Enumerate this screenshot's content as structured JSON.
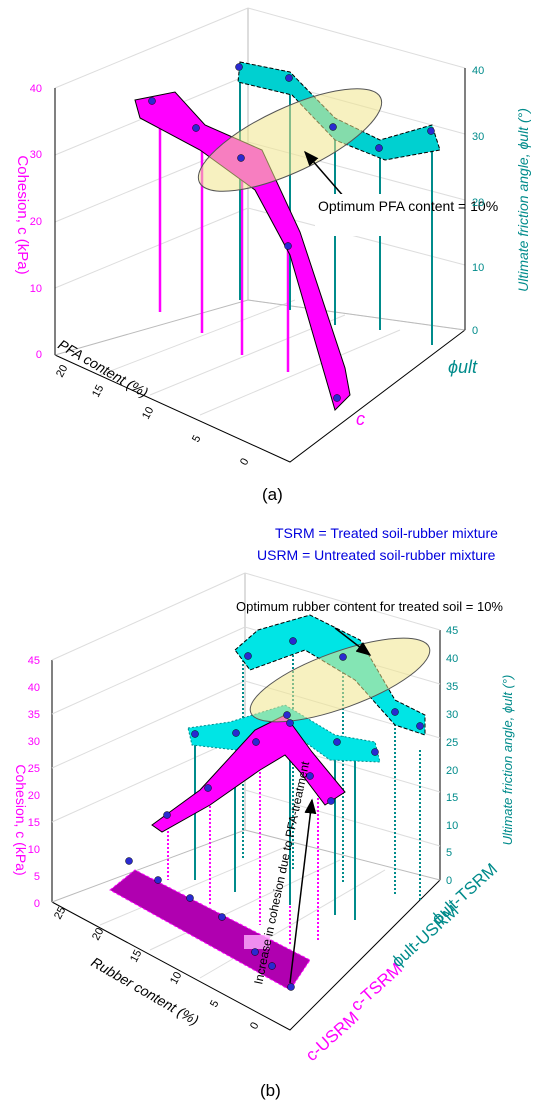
{
  "colors": {
    "cohesion": "#ff00ff",
    "cohesion_untreated": "#b000b0",
    "friction": "#008b8b",
    "friction_surface": "#00e5e5",
    "ellipse_fill": "#f0e68c",
    "label_blue": "#0000dd"
  },
  "chart_data": [
    {
      "type": "3d-surface",
      "panel_label": "(a)",
      "xlabel": "PFA content (%)",
      "x_ticks": [
        "0",
        "5",
        "10",
        "15",
        "20"
      ],
      "zlabel_left": "Cohesion, c (kPa)",
      "zlim_left": [
        0,
        40
      ],
      "z_ticks_left": [
        "0",
        "10",
        "20",
        "30",
        "40"
      ],
      "zlabel_right": "Ultimate friction angle, ϕult (°)",
      "zlim_right": [
        0,
        40
      ],
      "z_ticks_right": [
        "0",
        "10",
        "20",
        "30",
        "40"
      ],
      "series_labels": [
        "c",
        "ϕult"
      ],
      "series": [
        {
          "name": "c",
          "x": [
            0,
            10,
            20,
            25
          ],
          "values": [
            3,
            21,
            31,
            36
          ]
        },
        {
          "name": "ϕult",
          "x": [
            0,
            5,
            10,
            15,
            20
          ],
          "values": [
            30,
            29,
            33,
            33,
            37
          ]
        }
      ],
      "annotation": "Optimum PFA content = 10%"
    },
    {
      "type": "3d-surface",
      "panel_label": "(b)",
      "legend_notes": [
        "TSRM = Treated soil-rubber mixture",
        "USRM = Untreated soil-rubber mixture"
      ],
      "xlabel": "Rubber content (%)",
      "x_ticks": [
        "0",
        "5",
        "10",
        "15",
        "20",
        "25"
      ],
      "zlabel_left": "Cohesion, c (kPa)",
      "zlim_left": [
        0,
        45
      ],
      "z_ticks_left": [
        "0",
        "5",
        "10",
        "15",
        "20",
        "25",
        "30",
        "35",
        "40",
        "45"
      ],
      "zlabel_right": "Ultimate friction angle, ϕult (°)",
      "zlim_right": [
        0,
        45
      ],
      "z_ticks_right": [
        "0",
        "5",
        "10",
        "15",
        "20",
        "25",
        "30",
        "35",
        "40",
        "45"
      ],
      "series_labels": [
        "c-USRM",
        "c-TSRM",
        "ϕult-USRM",
        "ϕult-TSRM"
      ],
      "series": [
        {
          "name": "c-USRM",
          "x": [
            0,
            5,
            10,
            15,
            20,
            25
          ],
          "values": [
            0,
            0,
            0,
            0,
            0,
            0
          ]
        },
        {
          "name": "c-TSRM",
          "x": [
            0,
            5,
            10,
            15,
            20,
            25
          ],
          "values": [
            26,
            30,
            38,
            33,
            27,
            21
          ]
        },
        {
          "name": "ϕult-USRM",
          "x": [
            0,
            5,
            10,
            15,
            20,
            25
          ],
          "values": [
            26,
            28,
            29,
            27,
            28,
            27
          ]
        },
        {
          "name": "ϕult-TSRM",
          "x": [
            0,
            5,
            10,
            15,
            20,
            25
          ],
          "values": [
            32,
            36,
            39,
            37,
            33,
            31
          ]
        }
      ],
      "annotations": [
        "Optimum rubber content for treated soil = 10%",
        "Increase in cohesion due to PFA-treatment"
      ]
    }
  ]
}
